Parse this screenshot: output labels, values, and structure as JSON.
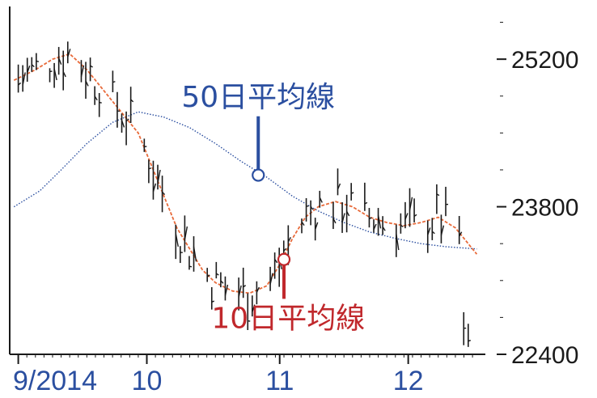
{
  "chart_data": {
    "type": "line",
    "title": "",
    "xlabel": "",
    "ylabel": "",
    "ylim": [
      22400,
      25700
    ],
    "y_ticks": [
      {
        "value": 25200,
        "label": "25200"
      },
      {
        "value": 23800,
        "label": "23800"
      },
      {
        "value": 22400,
        "label": "22400"
      }
    ],
    "x_ticks": [
      {
        "day": 0,
        "label": "9/2014"
      },
      {
        "day": 30,
        "label": "10"
      },
      {
        "day": 61,
        "label": "11"
      },
      {
        "day": 91,
        "label": "12"
      }
    ],
    "x_range_days": [
      -2,
      109
    ],
    "grid": false,
    "series": [
      {
        "name": "50日平均線",
        "color": "#2b4fa0",
        "style": "dotted",
        "points": [
          [
            -1,
            23800
          ],
          [
            5,
            23950
          ],
          [
            10,
            24150
          ],
          [
            16,
            24400
          ],
          [
            22,
            24600
          ],
          [
            28,
            24700
          ],
          [
            34,
            24650
          ],
          [
            40,
            24550
          ],
          [
            46,
            24400
          ],
          [
            52,
            24230
          ],
          [
            58,
            24080
          ],
          [
            64,
            23900
          ],
          [
            70,
            23760
          ],
          [
            76,
            23650
          ],
          [
            82,
            23560
          ],
          [
            88,
            23500
          ],
          [
            94,
            23450
          ],
          [
            100,
            23420
          ],
          [
            107,
            23400
          ]
        ]
      },
      {
        "name": "10日平均線",
        "color": "#e86a3a",
        "style": "dashed",
        "points": [
          [
            -1,
            25000
          ],
          [
            4,
            25100
          ],
          [
            8,
            25200
          ],
          [
            12,
            25250
          ],
          [
            16,
            25100
          ],
          [
            20,
            24900
          ],
          [
            24,
            24700
          ],
          [
            28,
            24500
          ],
          [
            31,
            24200
          ],
          [
            34,
            23900
          ],
          [
            37,
            23600
          ],
          [
            40,
            23400
          ],
          [
            43,
            23200
          ],
          [
            46,
            23080
          ],
          [
            50,
            23000
          ],
          [
            54,
            22980
          ],
          [
            58,
            23050
          ],
          [
            61,
            23250
          ],
          [
            64,
            23500
          ],
          [
            67,
            23700
          ],
          [
            70,
            23800
          ],
          [
            74,
            23850
          ],
          [
            78,
            23800
          ],
          [
            82,
            23700
          ],
          [
            86,
            23650
          ],
          [
            90,
            23620
          ],
          [
            94,
            23650
          ],
          [
            98,
            23700
          ],
          [
            102,
            23600
          ],
          [
            105,
            23450
          ],
          [
            107,
            23350
          ]
        ]
      }
    ],
    "annotations": [
      {
        "text": "50日平均線",
        "series": "50日平均線",
        "color": "#2b4fa0",
        "anchor": [
          56,
          24100
        ],
        "label_at": [
          56,
          24750
        ]
      },
      {
        "text": "10日平均線",
        "series": "10日平均線",
        "color": "#c0282c",
        "anchor": [
          62,
          23300
        ],
        "label_at": [
          63,
          22650
        ]
      }
    ],
    "colors": {
      "price_bars": "#1a1a1a",
      "axis": "#1a1a1a"
    }
  }
}
